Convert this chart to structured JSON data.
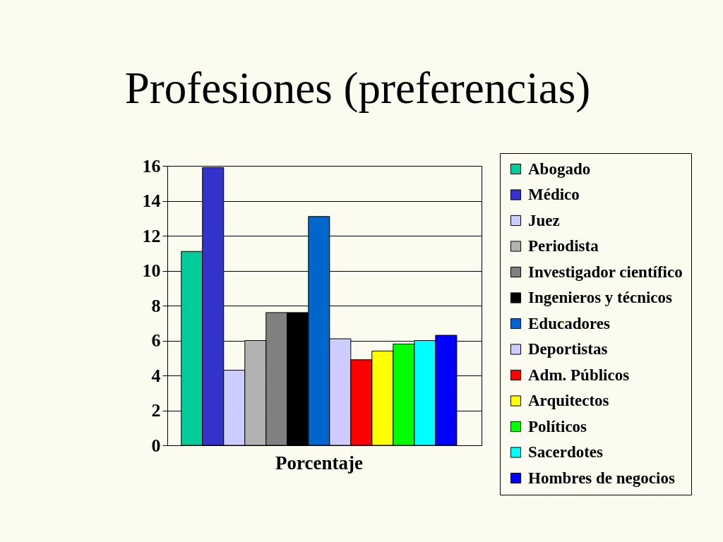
{
  "chart_data": {
    "type": "bar",
    "title": "Profesiones (preferencias)",
    "xlabel": "Porcentaje",
    "categories": [
      null
    ],
    "series": [
      {
        "name": "Abogado",
        "color": "#00cc99",
        "values": [
          11.1
        ]
      },
      {
        "name": "Médico",
        "color": "#3333cc",
        "values": [
          15.9
        ]
      },
      {
        "name": "Juez",
        "color": "#ccccff",
        "values": [
          4.3
        ]
      },
      {
        "name": "Periodista",
        "color": "#b2b2b2",
        "values": [
          6.0
        ]
      },
      {
        "name": "Investigador científico",
        "color": "#808080",
        "values": [
          7.6
        ]
      },
      {
        "name": "Ingenieros y técnicos",
        "color": "#000000",
        "values": [
          7.6
        ]
      },
      {
        "name": "Educadores",
        "color": "#0066cc",
        "values": [
          13.1
        ]
      },
      {
        "name": "Deportistas",
        "color": "#ccccff",
        "values": [
          6.1
        ]
      },
      {
        "name": "Adm. Públicos",
        "color": "#ff0000",
        "values": [
          4.9
        ]
      },
      {
        "name": "Arquitectos",
        "color": "#ffff00",
        "values": [
          5.4
        ]
      },
      {
        "name": "Políticos",
        "color": "#00ff00",
        "values": [
          5.8
        ]
      },
      {
        "name": "Sacerdotes",
        "color": "#00ffff",
        "values": [
          6.0
        ]
      },
      {
        "name": "Hombres de negocios",
        "color": "#0000ff",
        "values": [
          6.3
        ]
      }
    ],
    "ylim": [
      0,
      16
    ],
    "yticks": [
      0,
      2,
      4,
      6,
      8,
      10,
      12,
      14,
      16
    ],
    "grid": "y",
    "legend": "right"
  }
}
